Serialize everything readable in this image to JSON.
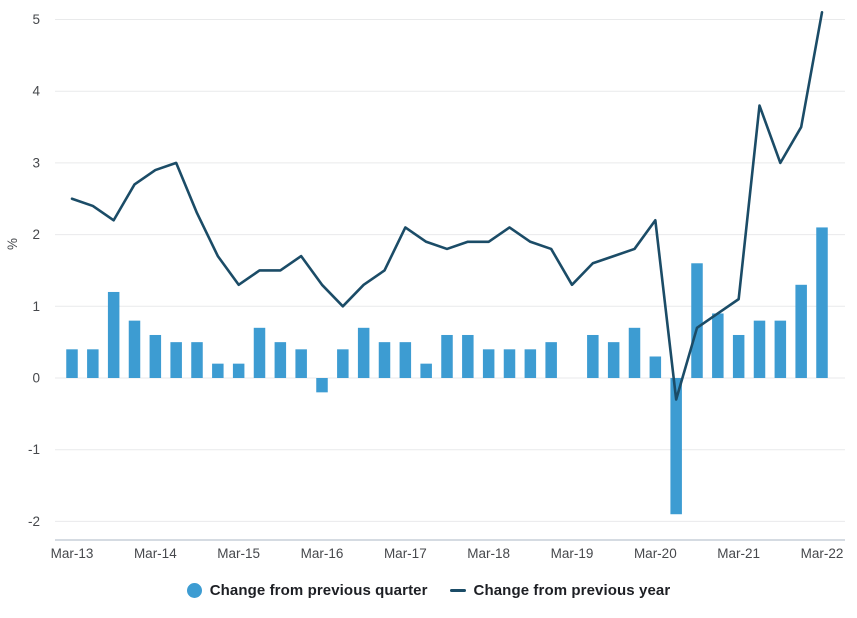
{
  "chart_data": {
    "type": "bar+line",
    "title": "",
    "xlabel": "",
    "ylabel": "%",
    "ylim": [
      -2,
      5
    ],
    "yticks": [
      5,
      4,
      3,
      2,
      1,
      0,
      -1,
      -2
    ],
    "grid": "horizontal",
    "legend_position": "bottom-center",
    "categories": [
      "Mar-13",
      "Jun-13",
      "Sep-13",
      "Dec-13",
      "Mar-14",
      "Jun-14",
      "Sep-14",
      "Dec-14",
      "Mar-15",
      "Jun-15",
      "Sep-15",
      "Dec-15",
      "Mar-16",
      "Jun-16",
      "Sep-16",
      "Dec-16",
      "Mar-17",
      "Jun-17",
      "Sep-17",
      "Dec-17",
      "Mar-18",
      "Jun-18",
      "Sep-18",
      "Dec-18",
      "Mar-19",
      "Jun-19",
      "Sep-19",
      "Dec-19",
      "Mar-20",
      "Jun-20",
      "Sep-20",
      "Dec-20",
      "Mar-21",
      "Jun-21",
      "Sep-21",
      "Dec-21",
      "Mar-22"
    ],
    "x_tick_labels": [
      "Mar-13",
      "Mar-14",
      "Mar-15",
      "Mar-16",
      "Mar-17",
      "Mar-18",
      "Mar-19",
      "Mar-20",
      "Mar-21",
      "Mar-22"
    ],
    "series": [
      {
        "name": "Change from previous quarter",
        "type": "bar",
        "values": [
          0.4,
          0.4,
          1.2,
          0.8,
          0.6,
          0.5,
          0.5,
          0.2,
          0.2,
          0.7,
          0.5,
          0.4,
          -0.2,
          0.4,
          0.7,
          0.5,
          0.5,
          0.2,
          0.6,
          0.6,
          0.4,
          0.4,
          0.4,
          0.5,
          0.0,
          0.6,
          0.5,
          0.7,
          0.3,
          -1.9,
          1.6,
          0.9,
          0.6,
          0.8,
          0.8,
          1.3,
          2.1
        ]
      },
      {
        "name": "Change from previous year",
        "type": "line",
        "values": [
          2.5,
          2.4,
          2.2,
          2.7,
          2.9,
          3.0,
          2.3,
          1.7,
          1.3,
          1.5,
          1.5,
          1.7,
          1.3,
          1.0,
          1.3,
          1.5,
          2.1,
          1.9,
          1.8,
          1.9,
          1.9,
          2.1,
          1.9,
          1.8,
          1.3,
          1.6,
          1.7,
          1.8,
          2.2,
          -0.3,
          0.7,
          0.9,
          1.1,
          3.8,
          3.0,
          3.5,
          5.1
        ]
      }
    ],
    "legend": [
      {
        "label": "Change from previous quarter",
        "marker": "dot"
      },
      {
        "label": "Change from previous year",
        "marker": "dash"
      }
    ]
  },
  "colors": {
    "bar": "#3d9cd2",
    "line": "#1b4c67",
    "grid": "#e9eaeb",
    "axis_line": "#c7cfd8",
    "tick_text": "#46484c",
    "legend_text": "#1d1f24",
    "background": "#ffffff"
  }
}
